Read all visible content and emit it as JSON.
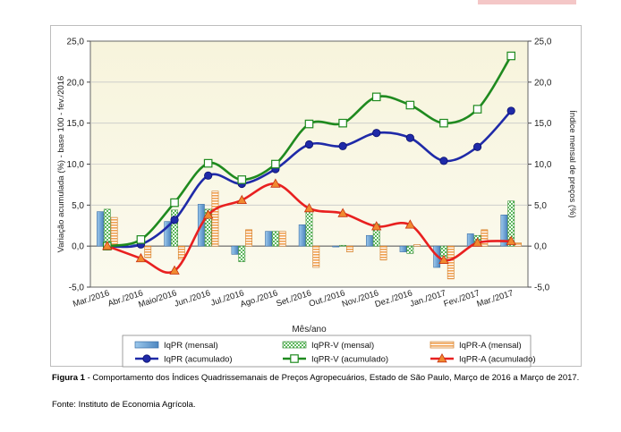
{
  "chart_data": {
    "type": "bar",
    "xlabel": "Mês/ano",
    "ylabel_left": "Variação acumulada (%) - base 100 - fev./2016",
    "ylabel_right": "Índice mensal de preços (%)",
    "ylim": [
      -5,
      25
    ],
    "y_ticks": [
      "-5,0",
      "0,0",
      "5,0",
      "10,0",
      "15,0",
      "20,0",
      "25,0"
    ],
    "y_tick_values": [
      -5,
      0,
      5,
      10,
      15,
      20,
      25
    ],
    "categories": [
      "Mar./2016",
      "Abr./2016",
      "Maio/2016",
      "Jun./2016",
      "Jul./2016",
      "Ago./2016",
      "Set./2016",
      "Out./2016",
      "Nov./2016",
      "Dez./2016",
      "Jan./2017",
      "Fev./2017",
      "Mar./2017"
    ],
    "bar_series": [
      {
        "name": "IqPR (mensal)",
        "color": "#6fa8dc",
        "pattern": "solid",
        "values": [
          4.2,
          0.2,
          3.0,
          5.1,
          -1.0,
          1.8,
          2.6,
          -0.1,
          1.3,
          -0.7,
          -2.6,
          1.5,
          3.8
        ]
      },
      {
        "name": "IqPR-V (mensal)",
        "color": "#5cb85c",
        "pattern": "checker",
        "values": [
          4.5,
          0.3,
          4.4,
          4.5,
          -1.9,
          1.8,
          4.5,
          0.1,
          2.7,
          -0.9,
          -1.5,
          1.3,
          5.5
        ]
      },
      {
        "name": "IqPR-A (mensal)",
        "color": "#f0a050",
        "pattern": "hstripe",
        "values": [
          3.5,
          -1.4,
          -1.6,
          6.7,
          2.0,
          1.8,
          -2.6,
          -0.7,
          -1.7,
          0.2,
          -4.0,
          2.0,
          0.4
        ]
      }
    ],
    "line_series": [
      {
        "name": "IqPR (acumulado)",
        "color": "#1f2aa8",
        "marker": "circle",
        "values": [
          0.0,
          0.2,
          3.2,
          8.6,
          7.6,
          9.4,
          12.4,
          12.2,
          13.8,
          13.2,
          10.4,
          12.1,
          16.5
        ]
      },
      {
        "name": "IqPR-V  (acumulado)",
        "color": "#1f8a1f",
        "marker": "square",
        "values": [
          0.0,
          0.8,
          5.3,
          10.1,
          8.1,
          10.0,
          14.9,
          15.0,
          18.2,
          17.2,
          15.0,
          16.7,
          23.2
        ]
      },
      {
        "name": "IqPR-A  (acumulado)",
        "color": "#e82020",
        "marker": "triangle",
        "values": [
          0.0,
          -1.5,
          -3.0,
          3.8,
          5.6,
          7.6,
          4.6,
          4.0,
          2.4,
          2.6,
          -1.7,
          0.4,
          0.6
        ]
      }
    ],
    "legend_placement": "bottom",
    "grid": "horizontal"
  },
  "caption": {
    "label": "Figura 1",
    "text": " - Comportamento dos Índices Quadrissemanais de Preços Agropecuários, Estado de São Paulo, Março de 2016 a Março de 2017."
  },
  "source": "Fonte: Instituto de Economia Agrícola."
}
